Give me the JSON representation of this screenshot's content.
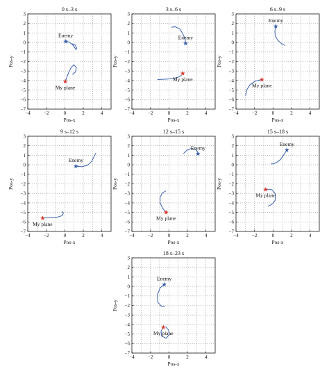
{
  "colors": {
    "enemy": "#3b5fa8",
    "my_plane": "#d93a2e",
    "trajectory": "#3b5fa8"
  },
  "chart_data": [
    {
      "type": "line",
      "title": "0 s–3 s",
      "xlabel": "Pos-x",
      "ylabel": "Pos-y",
      "xlim": [
        -4,
        5
      ],
      "ylim": [
        -7,
        3
      ],
      "xticks": [
        -4,
        -2,
        0,
        2,
        4
      ],
      "yticks": [
        3,
        2,
        1,
        0,
        -1,
        -2,
        -3,
        -4,
        -5,
        -6,
        -7
      ],
      "grid": true,
      "series": [
        {
          "name": "Enemy",
          "x": [
            0.1,
            0.45,
            0.8,
            1.05,
            1.2,
            1.3,
            1.1,
            0.8
          ],
          "y": [
            0.1,
            0.05,
            -0.2,
            -0.5,
            -0.75,
            -0.6,
            -0.25,
            -0.15
          ],
          "marker": {
            "x": 0.1,
            "y": 0.1,
            "label": "Enemy"
          }
        },
        {
          "name": "My plane",
          "x": [
            0.05,
            0.2,
            0.45,
            0.7,
            1.0,
            1.25,
            1.15,
            0.85
          ],
          "y": [
            -4.1,
            -3.7,
            -3.1,
            -2.6,
            -2.35,
            -2.65,
            -3.1,
            -3.35
          ],
          "marker": {
            "x": 0.05,
            "y": -4.1,
            "label": "My plane"
          }
        }
      ]
    },
    {
      "type": "line",
      "title": "3 s–6 s",
      "xlabel": "Pos-x",
      "ylabel": "Pos-y",
      "xlim": [
        -4,
        5
      ],
      "ylim": [
        -7,
        3
      ],
      "xticks": [
        -4,
        -2,
        0,
        2,
        4
      ],
      "yticks": [
        3,
        2,
        1,
        0,
        -1,
        -2,
        -3,
        -4,
        -5,
        -6,
        -7
      ],
      "grid": true,
      "series": [
        {
          "name": "Enemy",
          "x": [
            0.3,
            0.7,
            1.2,
            1.5,
            1.75,
            1.8
          ],
          "y": [
            1.6,
            1.65,
            1.4,
            0.9,
            0.4,
            -0.1
          ],
          "marker": {
            "x": 1.8,
            "y": -0.1,
            "label": "Enemy"
          }
        },
        {
          "name": "My plane",
          "x": [
            -1.2,
            -0.3,
            0.4,
            1.0,
            1.35,
            1.5
          ],
          "y": [
            -3.9,
            -3.85,
            -3.8,
            -3.65,
            -3.45,
            -3.25
          ],
          "marker": {
            "x": 1.5,
            "y": -3.25,
            "label": "My plane"
          }
        }
      ]
    },
    {
      "type": "line",
      "title": "6 s–9 s",
      "xlabel": "Pos-x",
      "ylabel": "Pos-y",
      "xlim": [
        -4,
        5
      ],
      "ylim": [
        -7,
        3
      ],
      "xticks": [
        -4,
        -2,
        0,
        2,
        4
      ],
      "yticks": [
        3,
        2,
        1,
        0,
        -1,
        -2,
        -3,
        -4,
        -5,
        -6,
        -7
      ],
      "grid": true,
      "series": [
        {
          "name": "Enemy",
          "x": [
            0.3,
            0.2,
            0.25,
            0.55,
            0.95,
            1.3
          ],
          "y": [
            1.7,
            1.15,
            0.65,
            0.2,
            -0.15,
            -0.3
          ],
          "marker": {
            "x": 0.3,
            "y": 1.7,
            "label": "Enemy"
          }
        },
        {
          "name": "My plane",
          "x": [
            -1.2,
            -1.9,
            -2.5,
            -2.85,
            -2.95
          ],
          "y": [
            -3.9,
            -4.05,
            -4.45,
            -5.0,
            -5.55
          ],
          "marker": {
            "x": -1.2,
            "y": -3.9,
            "label": "My plane"
          }
        }
      ]
    },
    {
      "type": "line",
      "title": "9 s–12 s",
      "xlabel": "Pos-x",
      "ylabel": "Pos-y",
      "xlim": [
        -4,
        5
      ],
      "ylim": [
        -7,
        3
      ],
      "xticks": [
        -4,
        -2,
        0,
        2,
        4
      ],
      "yticks": [
        3,
        2,
        1,
        0,
        -1,
        -2,
        -3,
        -4,
        -5,
        -6,
        -7
      ],
      "grid": true,
      "series": [
        {
          "name": "Enemy",
          "x": [
            1.2,
            1.85,
            2.45,
            2.9,
            3.15,
            3.35
          ],
          "y": [
            -0.15,
            -0.2,
            -0.05,
            0.35,
            0.85,
            1.2
          ],
          "marker": {
            "x": 1.2,
            "y": -0.15,
            "label": "Enemy"
          }
        },
        {
          "name": "My plane",
          "x": [
            -2.4,
            -1.6,
            -0.8,
            -0.3,
            -0.15,
            -0.3
          ],
          "y": [
            -5.6,
            -5.55,
            -5.5,
            -5.35,
            -5.1,
            -4.9
          ],
          "marker": {
            "x": -2.4,
            "y": -5.6,
            "label": "My plane"
          }
        }
      ]
    },
    {
      "type": "line",
      "title": "12 s–15 s",
      "xlabel": "Pos-x",
      "ylabel": "Pos-y",
      "xlim": [
        -4,
        5
      ],
      "ylim": [
        -7,
        3
      ],
      "xticks": [
        -4,
        -2,
        0,
        2,
        4
      ],
      "yticks": [
        3,
        2,
        1,
        0,
        -1,
        -2,
        -3,
        -4,
        -5,
        -6,
        -7
      ],
      "grid": true,
      "series": [
        {
          "name": "Enemy",
          "x": [
            1.6,
            1.9,
            2.35,
            2.8,
            3.05,
            3.15
          ],
          "y": [
            1.2,
            1.5,
            1.7,
            1.65,
            1.45,
            1.15
          ],
          "marker": {
            "x": 3.15,
            "y": 1.15,
            "label": "Enemy"
          }
        },
        {
          "name": "My plane",
          "x": [
            -0.3,
            -0.65,
            -0.95,
            -0.95,
            -0.7,
            -0.35
          ],
          "y": [
            -5.0,
            -4.6,
            -4.0,
            -3.4,
            -2.95,
            -2.75
          ],
          "marker": {
            "x": -0.3,
            "y": -5.0,
            "label": "My plane"
          }
        }
      ]
    },
    {
      "type": "line",
      "title": "15 s–18 s",
      "xlabel": "Pos-x",
      "ylabel": "Pos-y",
      "xlim": [
        -4,
        5
      ],
      "ylim": [
        -7,
        3
      ],
      "xticks": [
        -4,
        -2,
        0,
        2,
        4
      ],
      "yticks": [
        3,
        2,
        1,
        0,
        -1,
        -2,
        -3,
        -4,
        -5,
        -6,
        -7
      ],
      "grid": true,
      "series": [
        {
          "name": "Enemy",
          "x": [
            1.5,
            1.2,
            0.8,
            0.4,
            0.05,
            -0.2
          ],
          "y": [
            1.55,
            1.1,
            0.55,
            0.25,
            0.1,
            0.1
          ],
          "marker": {
            "x": 1.5,
            "y": 1.55,
            "label": "Enemy"
          }
        },
        {
          "name": "My plane",
          "x": [
            -0.8,
            -0.15,
            0.25,
            0.25,
            -0.05,
            -0.5
          ],
          "y": [
            -2.6,
            -2.6,
            -3.05,
            -3.7,
            -4.1,
            -4.35
          ],
          "marker": {
            "x": -0.8,
            "y": -2.6,
            "label": "My plane"
          }
        }
      ]
    },
    {
      "type": "line",
      "title": "18 s–23 s",
      "xlabel": "Pos-x",
      "ylabel": "Pos-y",
      "xlim": [
        -4,
        5
      ],
      "ylim": [
        -7,
        3
      ],
      "xticks": [
        -4,
        -2,
        0,
        2,
        4
      ],
      "yticks": [
        3,
        2,
        1,
        0,
        -1,
        -2,
        -3,
        -4,
        -5,
        -6,
        -7
      ],
      "grid": true,
      "series": [
        {
          "name": "Enemy",
          "x": [
            -0.5,
            -0.95,
            -1.25,
            -1.2,
            -0.8,
            -0.45
          ],
          "y": [
            0.2,
            -0.15,
            -0.9,
            -1.65,
            -2.1,
            -2.1
          ],
          "marker": {
            "x": -0.5,
            "y": 0.2,
            "label": "Enemy"
          }
        },
        {
          "name": "My plane",
          "x": [
            -0.6,
            -0.85,
            -0.8,
            -0.3,
            0.05,
            -0.05,
            -0.35
          ],
          "y": [
            -4.3,
            -4.7,
            -5.2,
            -5.45,
            -5.05,
            -4.55,
            -4.25
          ],
          "marker": {
            "x": -0.6,
            "y": -4.3,
            "label": "My plane"
          }
        }
      ]
    }
  ]
}
